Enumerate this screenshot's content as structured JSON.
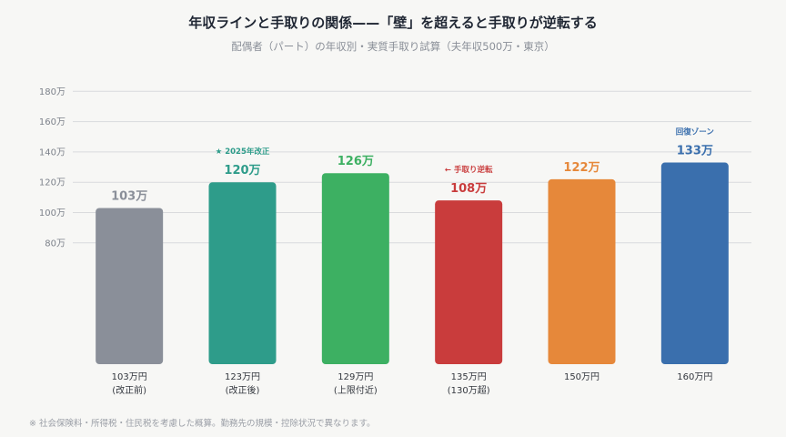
{
  "title": "年収ラインと手取りの関係——「壁」を超えると手取りが逆転する",
  "subtitle": "配偶者（パート）の年収別・実質手取り試算（夫年収500万・東京）",
  "footnote": "※ 社会保険料・所得税・住民税を考慮した概算。勤務先の規模・控除状況で異なります。",
  "chart_data": {
    "type": "bar",
    "ylim": [
      0,
      180
    ],
    "yticks": [
      80,
      100,
      120,
      140,
      160,
      180
    ],
    "ytick_labels": [
      "80万",
      "100万",
      "120万",
      "140万",
      "160万",
      "180万"
    ],
    "grid": true,
    "categories": [
      {
        "line1": "103万円",
        "line2": "(改正前)"
      },
      {
        "line1": "123万円",
        "line2": "(改正後)"
      },
      {
        "line1": "129万円",
        "line2": "(上限付近)"
      },
      {
        "line1": "135万円",
        "line2": "(130万超)"
      },
      {
        "line1": "150万円",
        "line2": ""
      },
      {
        "line1": "160万円",
        "line2": ""
      }
    ],
    "values": [
      103,
      120,
      126,
      108,
      122,
      133
    ],
    "value_labels": [
      "103万",
      "120万",
      "126万",
      "108万",
      "122万",
      "133万"
    ],
    "colors": [
      "#8a8f99",
      "#2e9c8a",
      "#3db062",
      "#c93c3c",
      "#e6883a",
      "#3a6fad"
    ],
    "annotations": [
      "",
      "★ 2025年改正",
      "",
      "← 手取り逆転",
      "",
      "回復ゾーン"
    ]
  }
}
